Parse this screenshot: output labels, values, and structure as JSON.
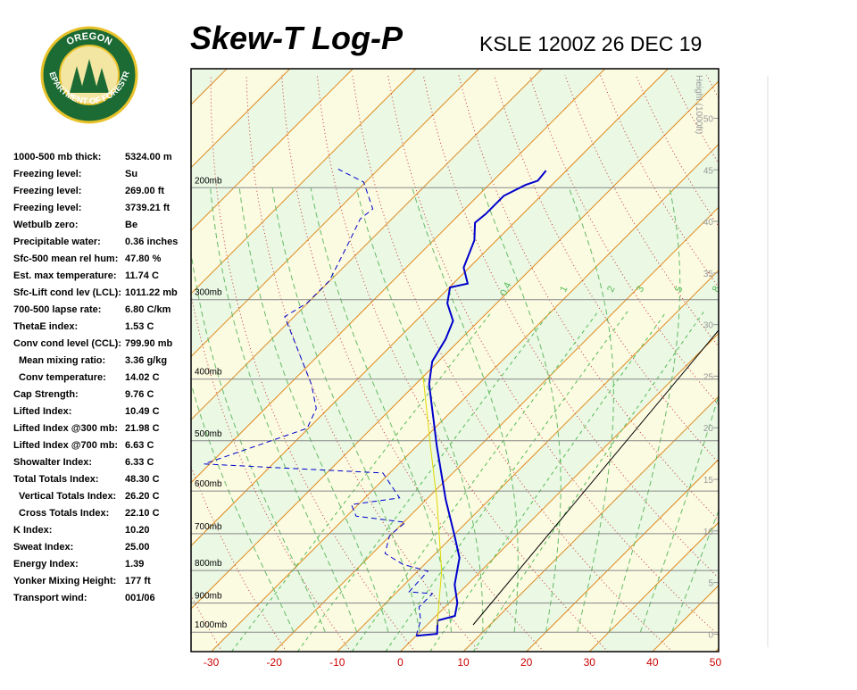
{
  "logo": {
    "top": "OREGON",
    "bottom": "DEPARTMENT OF FORESTRY"
  },
  "indices": [
    {
      "label": "1000-500 mb thick:",
      "value": "5324.00 m"
    },
    {
      "label": "Freezing level:",
      "value": "Su"
    },
    {
      "label": "Freezing level:",
      "value": "269.00 ft"
    },
    {
      "label": "Freezing level:",
      "value": "3739.21 ft"
    },
    {
      "label": "Wetbulb zero:",
      "value": "Be"
    },
    {
      "label": "Precipitable water:",
      "value": "0.36 inches"
    },
    {
      "label": "Sfc-500 mean rel hum:",
      "value": "47.80 %"
    },
    {
      "label": "Est. max temperature:",
      "value": "11.74 C"
    },
    {
      "label": "Sfc-Lift cond lev (LCL):",
      "value": "1011.22 mb"
    },
    {
      "label": "700-500 lapse rate:",
      "value": "6.80 C/km"
    },
    {
      "label": "ThetaE index:",
      "value": "1.53 C"
    },
    {
      "label": "Conv cond level (CCL):",
      "value": "799.90 mb"
    },
    {
      "label": "Mean mixing ratio:",
      "value": "3.36 g/kg"
    },
    {
      "label": "Conv temperature:",
      "value": "14.02 C"
    },
    {
      "label": "Cap Strength:",
      "value": "9.76 C"
    },
    {
      "label": "Lifted Index:",
      "value": "10.49 C"
    },
    {
      "label": "Lifted Index @300 mb:",
      "value": "21.98 C"
    },
    {
      "label": "Lifted Index @700 mb:",
      "value": "6.63 C"
    },
    {
      "label": "Showalter Index:",
      "value": "6.33 C"
    },
    {
      "label": "Total Totals Index:",
      "value": "48.30 C"
    },
    {
      "label": "Vertical Totals Index:",
      "value": "26.20 C"
    },
    {
      "label": "Cross Totals Index:",
      "value": "22.10 C"
    },
    {
      "label": "K Index:",
      "value": "10.20"
    },
    {
      "label": "Sweat Index:",
      "value": "25.00"
    },
    {
      "label": "Energy Index:",
      "value": "1.39"
    },
    {
      "label": "Yonker Mixing Height:",
      "value": "177 ft"
    },
    {
      "label": "Transport wind:",
      "value": "001/06"
    }
  ],
  "chart_data": {
    "type": "skewt",
    "title": "Skew-T Log-P",
    "subtitle": "KSLE 1200Z 26 DEC 19",
    "xlim": [
      -33.2,
      50.5
    ],
    "xticks": [
      -30,
      -20,
      -10,
      0,
      10,
      20,
      30,
      40,
      50
    ],
    "ylim": [
      1073,
      130
    ],
    "log_y": true,
    "yticks": [
      {
        "value": 200,
        "label": "200mb"
      },
      {
        "value": 300,
        "label": "300mb"
      },
      {
        "value": 400,
        "label": "400mb"
      },
      {
        "value": 500,
        "label": "500mb"
      },
      {
        "value": 600,
        "label": "600mb"
      },
      {
        "value": 700,
        "label": "700mb"
      },
      {
        "value": 800,
        "label": "800mb"
      },
      {
        "value": 900,
        "label": "900mb"
      },
      {
        "value": 1000,
        "label": "1000mb"
      }
    ],
    "y2label": "Height (1000ft)",
    "y2lim": [
      -1.7,
      54.8
    ],
    "y2ticks": [
      0,
      5,
      10,
      15,
      20,
      25,
      30,
      35,
      40,
      45,
      50
    ],
    "mixing_ratios": [
      0.4,
      1,
      2,
      3,
      5,
      8
    ],
    "series": [
      {
        "color": "#0000cc",
        "style": "solid",
        "pressure": [
          1013,
          1006,
          959,
          943,
          899,
          842,
          764,
          705,
          619,
          510,
          407,
          375,
          346,
          324,
          304,
          287,
          283,
          267,
          242,
          227,
          220,
          206,
          198,
          195,
          188
        ],
        "values": [
          0.0,
          3.0,
          1.0,
          3.0,
          1.3,
          -2.0,
          -5.5,
          -9.8,
          -16.9,
          -26.8,
          -37.9,
          -41.0,
          -42.4,
          -44.1,
          -47.8,
          -49.9,
          -47.7,
          -50.9,
          -53.5,
          -56.2,
          -55.9,
          -55.9,
          -54.2,
          -52.9,
          -53.2
        ]
      },
      {
        "color": "#0000cc",
        "style": "dashed",
        "pressure": [
          1013,
          959,
          913,
          870,
          864,
          802,
          782,
          752,
          705,
          672,
          657,
          630,
          615,
          562,
          544,
          478,
          445,
          407,
          319,
          304,
          280,
          246,
          224,
          216,
          196,
          187
        ],
        "values": [
          0.0,
          -1.7,
          -4.1,
          -4.1,
          -8.1,
          -8.4,
          -13.5,
          -18.0,
          -20.1,
          -19.7,
          -28.5,
          -31.1,
          -24.5,
          -31.1,
          -60.9,
          -50.2,
          -51.9,
          -56.6,
          -71.5,
          -70.1,
          -70.1,
          -72.9,
          -75.0,
          -74.6,
          -80.3,
          -86.4
        ]
      },
      {
        "color": "#e0d800",
        "style": "solid",
        "pressure": [
          974,
          802,
          619,
          510,
          394
        ],
        "values": [
          1.6,
          -6.2,
          -18.3,
          -27.8,
          -40.3
        ]
      }
    ]
  }
}
